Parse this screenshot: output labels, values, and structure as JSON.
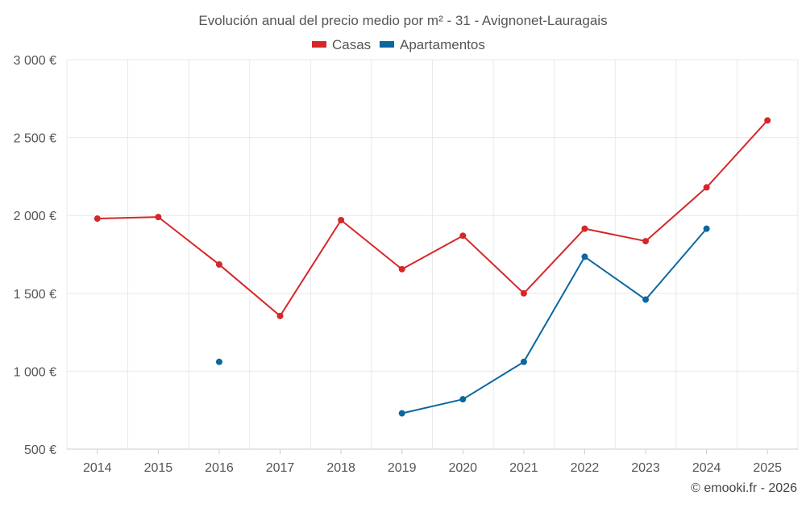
{
  "chart_data": {
    "type": "line",
    "title": "Evolución anual del precio medio por m² - 31 - Avignonet-Lauragais",
    "categories": [
      "2014",
      "2015",
      "2016",
      "2017",
      "2018",
      "2019",
      "2020",
      "2021",
      "2022",
      "2023",
      "2024",
      "2025"
    ],
    "series": [
      {
        "name": "Casas",
        "color": "#d62728",
        "values": [
          1980,
          1990,
          1685,
          1355,
          1970,
          1655,
          1870,
          1500,
          1915,
          1835,
          2180,
          2610
        ]
      },
      {
        "name": "Apartamentos",
        "color": "#0b67a0",
        "values": [
          null,
          null,
          1060,
          null,
          null,
          730,
          820,
          1060,
          1735,
          1460,
          1915,
          null
        ]
      }
    ],
    "ylim": [
      500,
      3000
    ],
    "yticks": [
      500,
      1000,
      1500,
      2000,
      2500,
      3000
    ],
    "ytick_labels": [
      "500 €",
      "1 000 €",
      "1 500 €",
      "2 000 €",
      "2 500 €",
      "3 000 €"
    ],
    "xlabel": "",
    "ylabel": "",
    "grid": true,
    "legend_position": "top-center"
  },
  "credit": "© emooki.fr - 2026"
}
